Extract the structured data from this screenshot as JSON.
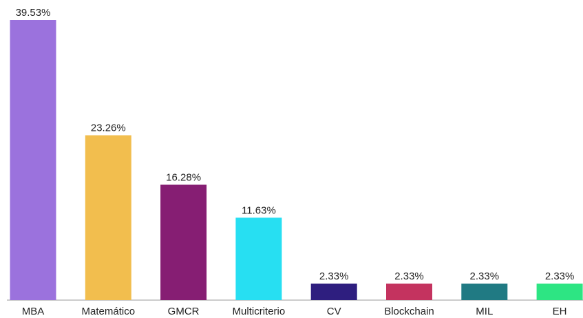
{
  "chart_data": {
    "type": "bar",
    "categories": [
      "MBA",
      "Matemático",
      "GMCR",
      "Multicriterio",
      "CV",
      "Blockchain",
      "MIL",
      "EH"
    ],
    "values": [
      39.53,
      23.26,
      16.28,
      11.63,
      2.33,
      2.33,
      2.33,
      2.33
    ],
    "value_labels": [
      "39.53%",
      "23.26%",
      "16.28%",
      "11.63%",
      "2.33%",
      "2.33%",
      "2.33%",
      "2.33%"
    ],
    "colors": [
      "#9b72dd",
      "#f2be4e",
      "#861e73",
      "#27dff2",
      "#2e1e7f",
      "#c4335f",
      "#207a83",
      "#2de583"
    ]
  }
}
